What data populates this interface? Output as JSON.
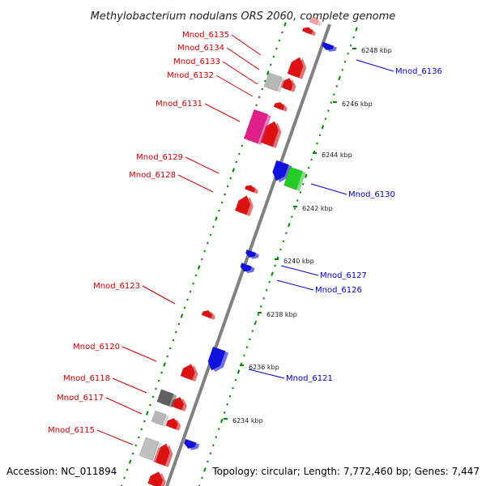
{
  "title": "Methylobacterium nodulans ORS 2060, complete genome",
  "accession": "Accession: NC_011894",
  "topology": "Topology: circular; Length: 7,772,460 bp; Genes: 7,447",
  "colors": {
    "left_labels": "#cc0000",
    "right_labels": "#0000cc",
    "dots": "#008800",
    "axis": "#808080"
  },
  "left_labels": [
    {
      "name": "Mnod_6135"
    },
    {
      "name": "Mnod_6134"
    },
    {
      "name": "Mnod_6133"
    },
    {
      "name": "Mnod_6132"
    },
    {
      "name": "Mnod_6131"
    },
    {
      "name": "Mnod_6129"
    },
    {
      "name": "Mnod_6128"
    },
    {
      "name": "Mnod_6123"
    },
    {
      "name": "Mnod_6120"
    },
    {
      "name": "Mnod_6118"
    },
    {
      "name": "Mnod_6117"
    },
    {
      "name": "Mnod_6115"
    }
  ],
  "right_labels": [
    {
      "name": "Mnod_6136"
    },
    {
      "name": "Mnod_6130"
    },
    {
      "name": "Mnod_6127"
    },
    {
      "name": "Mnod_6126"
    },
    {
      "name": "Mnod_6121"
    }
  ],
  "kbp_ticks": [
    {
      "label": "6248 kbp"
    },
    {
      "label": "6246 kbp"
    },
    {
      "label": "6244 kbp"
    },
    {
      "label": "6242 kbp"
    },
    {
      "label": "6240 kbp"
    },
    {
      "label": "6238 kbp"
    },
    {
      "label": "6236 kbp"
    },
    {
      "label": "6234 kbp"
    }
  ],
  "genes": [
    {
      "color": "#dd1111"
    },
    {
      "color": "#dd1111"
    },
    {
      "color": "#dd1111"
    },
    {
      "color": "#dd1111"
    },
    {
      "color": "#dd1111"
    },
    {
      "color": "#dd1111"
    },
    {
      "color": "#dd1111"
    },
    {
      "color": "#dd1111"
    },
    {
      "color": "#dd1111"
    },
    {
      "color": "#dd1111"
    },
    {
      "color": "#dd1111"
    },
    {
      "color": "#dd1111"
    },
    {
      "color": "#dd1111"
    },
    {
      "color": "#f0a0a0"
    },
    {
      "color": "#b8b8b8"
    },
    {
      "color": "#e0208a"
    },
    {
      "color": "#606060"
    },
    {
      "color": "#b8b8b8"
    },
    {
      "color": "#c0c0c0"
    },
    {
      "color": "#1111dd"
    },
    {
      "color": "#1111dd"
    },
    {
      "color": "#1111dd"
    },
    {
      "color": "#1111dd"
    },
    {
      "color": "#1111dd"
    },
    {
      "color": "#1111dd"
    },
    {
      "color": "#22cc22"
    }
  ]
}
